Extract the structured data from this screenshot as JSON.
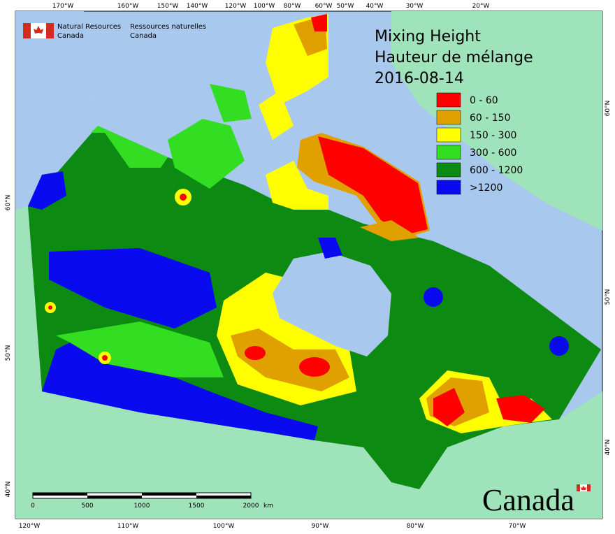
{
  "header": {
    "agency_en": [
      "Natural Resources",
      "Canada"
    ],
    "agency_fr": [
      "Ressources naturelles",
      "Canada"
    ]
  },
  "title": {
    "en": "Mixing Height",
    "fr": "Hauteur de mélange",
    "date": "2016-08-14"
  },
  "legend": [
    {
      "label": "0 - 60",
      "color": "#ff0000"
    },
    {
      "label": "60 - 150",
      "color": "#e0a000"
    },
    {
      "label": "150 - 300",
      "color": "#ffff00"
    },
    {
      "label": "300 - 600",
      "color": "#33dd22"
    },
    {
      "label": "600 - 1200",
      "color": "#0c8a12"
    },
    {
      "label": ">1200",
      "color": "#0a0af0"
    }
  ],
  "graticule": {
    "top": [
      "170°W",
      "160°W",
      "150°W",
      "140°W",
      "120°W",
      "100°W",
      "80°W",
      "60°W",
      "50°W",
      "40°W",
      "30°W",
      "20°W"
    ],
    "bottom": [
      "120°W",
      "110°W",
      "100°W",
      "90°W",
      "80°W",
      "70°W"
    ],
    "left": [
      "60°N",
      "50°N",
      "40°N"
    ],
    "right": [
      "60°N",
      "50°N",
      "40°N"
    ]
  },
  "scale_bar": {
    "labels": [
      "0",
      "500",
      "1000",
      "1500",
      "2000"
    ],
    "unit": "km"
  },
  "wordmark": "Canada"
}
